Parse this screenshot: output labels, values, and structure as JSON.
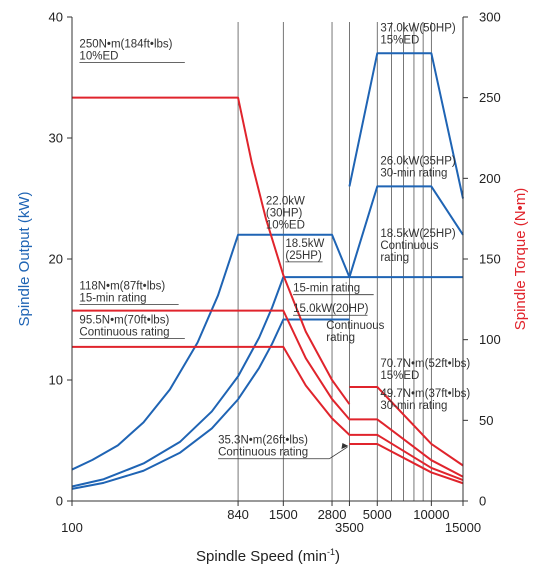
{
  "chart_data": {
    "type": "line",
    "xlabel": "Spindle Speed (min",
    "xlabel_sup": "-1",
    "xlabel_close": ")",
    "ylabel_left": "Spindle Output (kW)",
    "ylabel_right": "Spindle Torque (N•m)",
    "x_scale": "log",
    "xlim": [
      100,
      15000
    ],
    "ylim_left": [
      0,
      40
    ],
    "ylim_right": [
      0,
      300
    ],
    "x_ticks": [
      {
        "value": 100,
        "label": "100",
        "row": 0
      },
      {
        "value": 840,
        "label": "840",
        "row": 1
      },
      {
        "value": 1500,
        "label": "1500",
        "row": 1
      },
      {
        "value": 2800,
        "label": "2800",
        "row": 1
      },
      {
        "value": 3500,
        "label": "3500",
        "row": 2
      },
      {
        "value": 5000,
        "label": "5000",
        "row": 1
      },
      {
        "value": 10000,
        "label": "10000",
        "row": 1
      },
      {
        "value": 15000,
        "label": "15000",
        "row": 2
      }
    ],
    "y_ticks_left": [
      {
        "value": 0,
        "label": "0"
      },
      {
        "value": 10,
        "label": "10"
      },
      {
        "value": 20,
        "label": "20"
      },
      {
        "value": 30,
        "label": "30"
      },
      {
        "value": 40,
        "label": "40"
      }
    ],
    "y_ticks_right": [
      {
        "value": 0,
        "label": "0"
      },
      {
        "value": 50,
        "label": "50"
      },
      {
        "value": 100,
        "label": "100"
      },
      {
        "value": 150,
        "label": "150"
      },
      {
        "value": 200,
        "label": "200"
      },
      {
        "value": 250,
        "label": "250"
      },
      {
        "value": 300,
        "label": "300"
      }
    ],
    "vgrid_x": [
      840,
      1500,
      2800,
      3500,
      5000,
      6000,
      7000,
      8000,
      9000,
      10000
    ],
    "colors": {
      "output": "#1f64b4",
      "torque": "#e0242c",
      "text": "#333333"
    },
    "output_series": [
      {
        "points": [
          [
            100,
            2.6
          ],
          [
            130,
            3.4
          ],
          [
            180,
            4.6
          ],
          [
            250,
            6.5
          ],
          [
            350,
            9.2
          ],
          [
            500,
            13.1
          ],
          [
            650,
            17.0
          ],
          [
            840,
            22.0
          ],
          [
            2800,
            22.0
          ],
          [
            3500,
            18.5
          ]
        ]
      },
      {
        "points": [
          [
            100,
            1.2
          ],
          [
            150,
            1.8
          ],
          [
            250,
            3.1
          ],
          [
            400,
            4.9
          ],
          [
            600,
            7.4
          ],
          [
            840,
            10.3
          ],
          [
            1100,
            13.5
          ],
          [
            1300,
            16.0
          ],
          [
            1500,
            18.5
          ],
          [
            3500,
            18.5
          ],
          [
            10000,
            18.5
          ],
          [
            15000,
            18.5
          ]
        ]
      },
      {
        "points": [
          [
            100,
            1.0
          ],
          [
            150,
            1.5
          ],
          [
            250,
            2.5
          ],
          [
            400,
            4.0
          ],
          [
            600,
            6.0
          ],
          [
            840,
            8.4
          ],
          [
            1100,
            11.0
          ],
          [
            1300,
            13.0
          ],
          [
            1500,
            15.0
          ],
          [
            3500,
            15.0
          ]
        ]
      },
      {
        "points": [
          [
            3500,
            26.0
          ],
          [
            5000,
            37.0
          ],
          [
            10000,
            37.0
          ],
          [
            15000,
            25.0
          ]
        ]
      },
      {
        "points": [
          [
            3500,
            18.5
          ],
          [
            5000,
            26.0
          ],
          [
            10000,
            26.0
          ],
          [
            15000,
            22.0
          ]
        ]
      }
    ],
    "torque_series": [
      {
        "points": [
          [
            100,
            250
          ],
          [
            840,
            250
          ],
          [
            1000,
            210
          ],
          [
            1200,
            175
          ],
          [
            1500,
            140
          ],
          [
            2000,
            105
          ],
          [
            2800,
            75
          ],
          [
            3500,
            60
          ]
        ]
      },
      {
        "points": [
          [
            100,
            118
          ],
          [
            1500,
            118
          ],
          [
            2000,
            88.5
          ],
          [
            2800,
            63.2
          ],
          [
            3500,
            50.6
          ],
          [
            5000,
            50.6
          ],
          [
            10000,
            25.3
          ],
          [
            15000,
            15
          ]
        ]
      },
      {
        "points": [
          [
            100,
            95.5
          ],
          [
            1500,
            95.5
          ],
          [
            2000,
            71.6
          ],
          [
            2800,
            51.2
          ],
          [
            3500,
            41.0
          ],
          [
            5000,
            41.0
          ],
          [
            10000,
            20.5
          ],
          [
            15000,
            13
          ]
        ]
      },
      {
        "points": [
          [
            3500,
            70.7
          ],
          [
            5000,
            70.7
          ],
          [
            10000,
            35.4
          ],
          [
            15000,
            22
          ]
        ]
      },
      {
        "points": [
          [
            3500,
            35.3
          ],
          [
            5000,
            35.3
          ],
          [
            10000,
            17.7
          ],
          [
            15000,
            11
          ]
        ]
      }
    ],
    "annotations": [
      {
        "lines": [
          "250N•m(184ft•lbs)",
          "10%ED"
        ],
        "x": 110,
        "y": 281,
        "axis": "right",
        "underline": true
      },
      {
        "lines": [
          "22.0kW",
          "(30HP)",
          "10%ED"
        ],
        "x": 1200,
        "y": 24.5,
        "axis": "left",
        "underline": false
      },
      {
        "lines": [
          "18.5kW",
          "(25HP)"
        ],
        "x": 1540,
        "y": 21.0,
        "axis": "left",
        "underline": true
      },
      {
        "lines": [
          "15-min rating"
        ],
        "x": 1700,
        "y": 17.3,
        "axis": "left",
        "underline": true
      },
      {
        "lines": [
          "15.0kW(20HP)"
        ],
        "x": 1700,
        "y": 15.6,
        "axis": "left",
        "underline": true
      },
      {
        "lines": [
          "Continuous",
          "rating"
        ],
        "x": 2600,
        "y": 14.2,
        "axis": "left",
        "underline": false
      },
      {
        "lines": [
          "37.0kW(50HP)",
          "15%ED"
        ],
        "x": 5200,
        "y": 38.8,
        "axis": "left",
        "underline": false
      },
      {
        "lines": [
          "26.0kW(35HP)",
          "30-min rating"
        ],
        "x": 5200,
        "y": 27.8,
        "axis": "left",
        "underline": false
      },
      {
        "lines": [
          "18.5kW(25HP)",
          "Continuous",
          "rating"
        ],
        "x": 5200,
        "y": 21.8,
        "axis": "left",
        "underline": false
      },
      {
        "lines": [
          "118N•m(87ft•lbs)",
          "15-min rating"
        ],
        "x": 110,
        "y": 131,
        "axis": "right",
        "underline": true
      },
      {
        "lines": [
          "95.5N•m(70ft•lbs)",
          "Continuous rating"
        ],
        "x": 110,
        "y": 110,
        "axis": "right",
        "underline": true
      },
      {
        "lines": [
          "70.7N•m(52ft•lbs)",
          "15%ED"
        ],
        "x": 5200,
        "y": 83,
        "axis": "right",
        "underline": false
      },
      {
        "lines": [
          "49.7N•m(37ft•lbs)",
          "30-min rating"
        ],
        "x": 5200,
        "y": 64.5,
        "axis": "right",
        "underline": false
      },
      {
        "lines": [
          "35.3N•m(26ft•lbs)",
          "Continuous rating"
        ],
        "x": 650,
        "y": 35.5,
        "axis": "right",
        "underline": true,
        "leader_to": [
          3500,
          35.3
        ]
      }
    ]
  }
}
